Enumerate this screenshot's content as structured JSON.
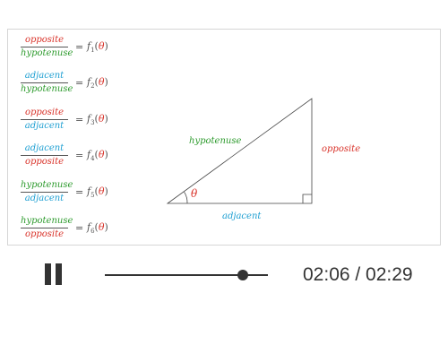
{
  "colors": {
    "opposite": "#d9342b",
    "hypotenuse": "#2e9b2e",
    "adjacent": "#1e9fd2",
    "theta": "#d9342b"
  },
  "ratios": [
    {
      "num": "opposite",
      "num_color": "opposite",
      "den": "hypotenuse",
      "den_color": "hypotenuse",
      "eq": "=",
      "f": "f",
      "sub": "1",
      "arg": "θ"
    },
    {
      "num": "adjacent",
      "num_color": "adjacent",
      "den": "hypotenuse",
      "den_color": "hypotenuse",
      "eq": "=",
      "f": "f",
      "sub": "2",
      "arg": "θ"
    },
    {
      "num": "opposite",
      "num_color": "opposite",
      "den": "adjacent",
      "den_color": "adjacent",
      "eq": "=",
      "f": "f",
      "sub": "3",
      "arg": "θ"
    },
    {
      "num": "adjacent",
      "num_color": "adjacent",
      "den": "opposite",
      "den_color": "opposite",
      "eq": "=",
      "f": "f",
      "sub": "4",
      "arg": "θ"
    },
    {
      "num": "hypotenuse",
      "num_color": "hypotenuse",
      "den": "adjacent",
      "den_color": "adjacent",
      "eq": "=",
      "f": "f",
      "sub": "5",
      "arg": "θ"
    },
    {
      "num": "hypotenuse",
      "num_color": "hypotenuse",
      "den": "opposite",
      "den_color": "opposite",
      "eq": "=",
      "f": "f",
      "sub": "6",
      "arg": "θ"
    }
  ],
  "triangle": {
    "hypotenuse_label": "hypotenuse",
    "opposite_label": "opposite",
    "adjacent_label": "adjacent",
    "angle_label": "θ"
  },
  "player": {
    "pause_icon": "pause-icon",
    "progress": 0.845,
    "time_display": "02:06 / 02:29"
  }
}
